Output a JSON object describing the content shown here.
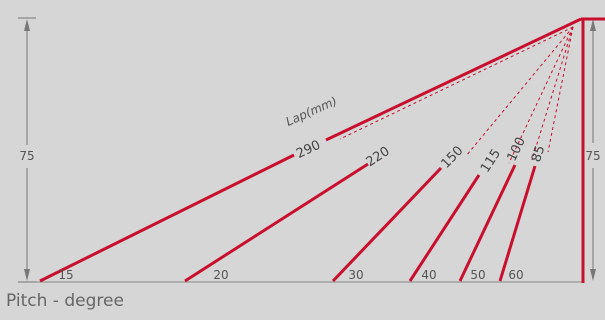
{
  "diagram": {
    "left_dimension_label": "75",
    "right_dimension_label": "75",
    "lap_title": "Lap(mm)",
    "caption": "Pitch - degree",
    "accent_color": "#c8102e",
    "rafters": [
      {
        "lap_label": "290",
        "pitch_label": "15"
      },
      {
        "lap_label": "220",
        "pitch_label": "20"
      },
      {
        "lap_label": "150",
        "pitch_label": "30"
      },
      {
        "lap_label": "115",
        "pitch_label": "40"
      },
      {
        "lap_label": "100",
        "pitch_label": "50"
      },
      {
        "lap_label": "85",
        "pitch_label": "60"
      }
    ]
  }
}
